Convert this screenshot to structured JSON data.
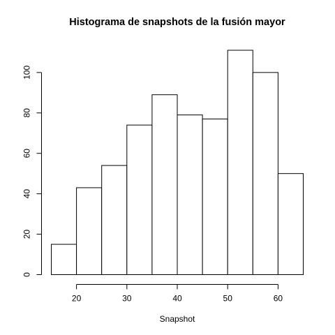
{
  "chart_data": {
    "type": "bar",
    "title": "Histograma de snapshots de la fusión mayor",
    "xlabel": "Snapshot",
    "ylabel": "",
    "bins": [
      {
        "x0": 15,
        "x1": 20,
        "count": 15
      },
      {
        "x0": 20,
        "x1": 25,
        "count": 43
      },
      {
        "x0": 25,
        "x1": 30,
        "count": 54
      },
      {
        "x0": 30,
        "x1": 35,
        "count": 74
      },
      {
        "x0": 35,
        "x1": 40,
        "count": 89
      },
      {
        "x0": 40,
        "x1": 45,
        "count": 79
      },
      {
        "x0": 45,
        "x1": 50,
        "count": 77
      },
      {
        "x0": 50,
        "x1": 55,
        "count": 111
      },
      {
        "x0": 55,
        "x1": 60,
        "count": 100
      },
      {
        "x0": 60,
        "x1": 65,
        "count": 50
      }
    ],
    "xlim": [
      15,
      65
    ],
    "ylim": [
      0,
      111
    ],
    "x_ticks": [
      20,
      30,
      40,
      50,
      60
    ],
    "y_ticks": [
      0,
      20,
      40,
      60,
      80,
      100
    ],
    "bar_fill": "#ffffff",
    "bar_stroke": "#000000",
    "grid": false
  }
}
